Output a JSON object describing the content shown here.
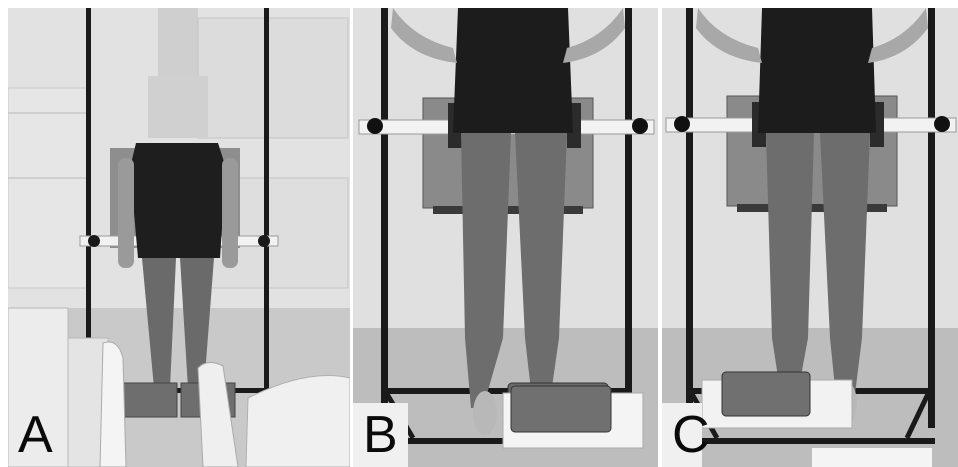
{
  "figure": {
    "panels": [
      {
        "id": "a",
        "label": "A"
      },
      {
        "id": "b",
        "label": "B"
      },
      {
        "id": "c",
        "label": "C"
      }
    ]
  }
}
